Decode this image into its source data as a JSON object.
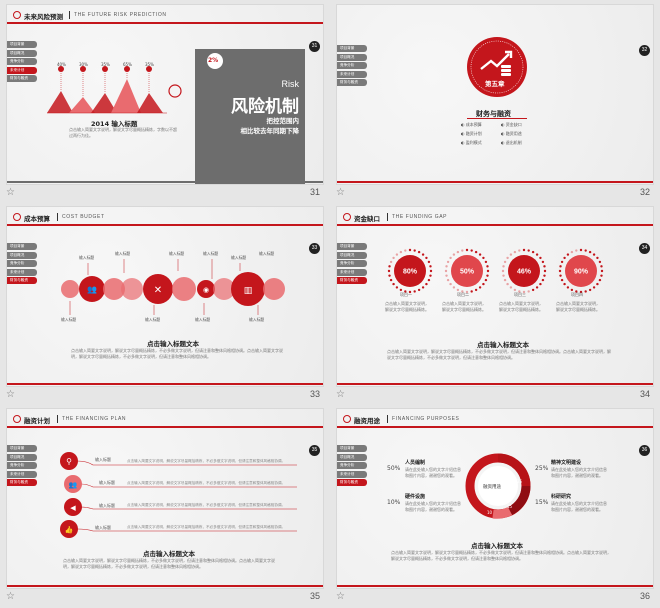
{
  "nav_items": [
    "项目背景",
    "项目概况",
    "竞争分析",
    "未来计划",
    "财务与融资"
  ],
  "slides": {
    "s31": {
      "page": "31",
      "header_cn": "未来风险预测",
      "header_en": "THE FUTURE RISK PREDICTION",
      "nav": [
        "项目背景",
        "项目概况",
        "竞争分析",
        "未来计划",
        "财务与融资"
      ],
      "pcts": [
        "40%",
        "30%",
        "35%",
        "65%",
        "35%"
      ],
      "year_title": "2014 输入标题",
      "body": "点击输入简要文字说明，解说文字尽量概括精炼，字数以不超过两行为佳。",
      "risk_en": "Risk",
      "risk_pct": "2%",
      "risk_big": "风险机制",
      "risk_l1": "把控范围内",
      "risk_l2": "相比较去年同期下降"
    },
    "s32": {
      "page": "32",
      "nav": [
        "项目背景",
        "项目概况",
        "竞争分析",
        "未来计划",
        "财务与融资"
      ],
      "chapter": "第五章",
      "section": "财务与融资",
      "items": [
        "成本预算",
        "资金缺口",
        "融资计划",
        "融资用途",
        "盈利模式",
        "退出机制"
      ]
    },
    "s33": {
      "page": "33",
      "header_cn": "成本预算",
      "header_en": "COST BUDGET",
      "nav": [
        "项目背景",
        "项目概况",
        "竞争分析",
        "未来计划",
        "财务与融资"
      ],
      "labels_top": [
        "输入标题",
        "输入标题",
        "输入标题",
        "输入标题",
        "输入标题",
        "输入标题"
      ],
      "labels_bottom": [
        "输入标题",
        "输入标题",
        "输入标题",
        "输入标题"
      ],
      "title": "点击输入标题文本",
      "body": "点击输入简要文字说明，解说文字尽量概括精炼，不必多做文字说明，但请注意和整体风格相协调。点击输入简要文字说明，解说文字尽量概括精炼，不必多做文字说明，但请注意和整体风格相协调。"
    },
    "s34": {
      "page": "34",
      "header_cn": "资金缺口",
      "header_en": "THE FUNDING GAP",
      "nav": [
        "项目背景",
        "项目概况",
        "竞争分析",
        "未来计划",
        "财务与融资"
      ],
      "rings": [
        {
          "value": "80%",
          "label": "项目一",
          "fill": 0.8
        },
        {
          "value": "50%",
          "label": "项目二",
          "fill": 0.5
        },
        {
          "value": "46%",
          "label": "项目三",
          "fill": 0.46
        },
        {
          "value": "90%",
          "label": "项目四",
          "fill": 0.9
        }
      ],
      "ring_desc": "点击输入简要文字说明，解说文字尽量概括精炼。",
      "title": "点击输入标题文本",
      "body": "点击输入简要文字说明，解说文字尽量概括精炼，不必多做文字说明，但请注意和整体风格相协调。点击输入简要文字说明，解说文字尽量概括精炼，不必多做文字说明，但请注意和整体风格相协调。"
    },
    "s35": {
      "page": "35",
      "header_cn": "融资计划",
      "header_en": "THE FINANCING PLAN",
      "nav": [
        "项目背景",
        "项目概况",
        "竞争分析",
        "未来计划",
        "财务与融资"
      ],
      "rows": [
        {
          "label": "输入标题",
          "text": "点击输入简要文字说明，解说文字尽量概括精炼，不必多做文字说明，但请注意和整体风格相协调。"
        },
        {
          "label": "输入标题",
          "text": "点击输入简要文字说明，解说文字尽量概括精炼，不必多做文字说明，但请注意和整体风格相协调。"
        },
        {
          "label": "输入标题",
          "text": "点击输入简要文字说明，解说文字尽量概括精炼，不必多做文字说明，但请注意和整体风格相协调。"
        },
        {
          "label": "输入标题",
          "text": "点击输入简要文字说明，解说文字尽量概括精炼，不必多做文字说明，但请注意和整体风格相协调。"
        }
      ],
      "title": "点击输入标题文本",
      "body": "点击输入简要文字说明，解说文字尽量概括精炼，不必多做文字说明，但请注意和整体风格相协调。点击输入简要文字说明，解说文字尽量概括精炼，不必多做文字说明，但请注意和整体风格相协调。"
    },
    "s36": {
      "page": "36",
      "header_cn": "融资用途",
      "header_en": "FINANCING PURPOSES",
      "nav": [
        "项目背景",
        "项目概况",
        "竞争分析",
        "未来计划",
        "财务与融资"
      ],
      "center_label": "融资用途",
      "left": [
        {
          "pct": "50%",
          "title": "人员编制",
          "text": "请在此处输入您的文字介绍信息和图片内容，谢谢您的观看。"
        },
        {
          "pct": "10%",
          "title": "硬件设施",
          "text": "请在此处输入您的文字介绍信息和图片内容，谢谢您的观看。"
        }
      ],
      "right": [
        {
          "pct": "25%",
          "title": "精神文明建设",
          "text": "请在此处输入您的文字介绍信息和图片内容，谢谢您的观看。"
        },
        {
          "pct": "15%",
          "title": "科研研究",
          "text": "请在此处输入您的文字介绍信息和图片内容，谢谢您的观看。"
        }
      ],
      "inner_labels": [
        "10",
        "25",
        "15"
      ],
      "title": "点击输入标题文本",
      "body": "点击输入简要文字说明，解说文字尽量概括精炼，不必多做文字说明，但请注意和整体风格相协调。点击输入简要文字说明，解说文字尽量概括精炼，不必多做文字说明，但请注意和整体风格相协调。"
    }
  },
  "colors": {
    "accent": "#c4161c",
    "light_red": "#e96b6f",
    "gray": "#7a7a7a"
  }
}
